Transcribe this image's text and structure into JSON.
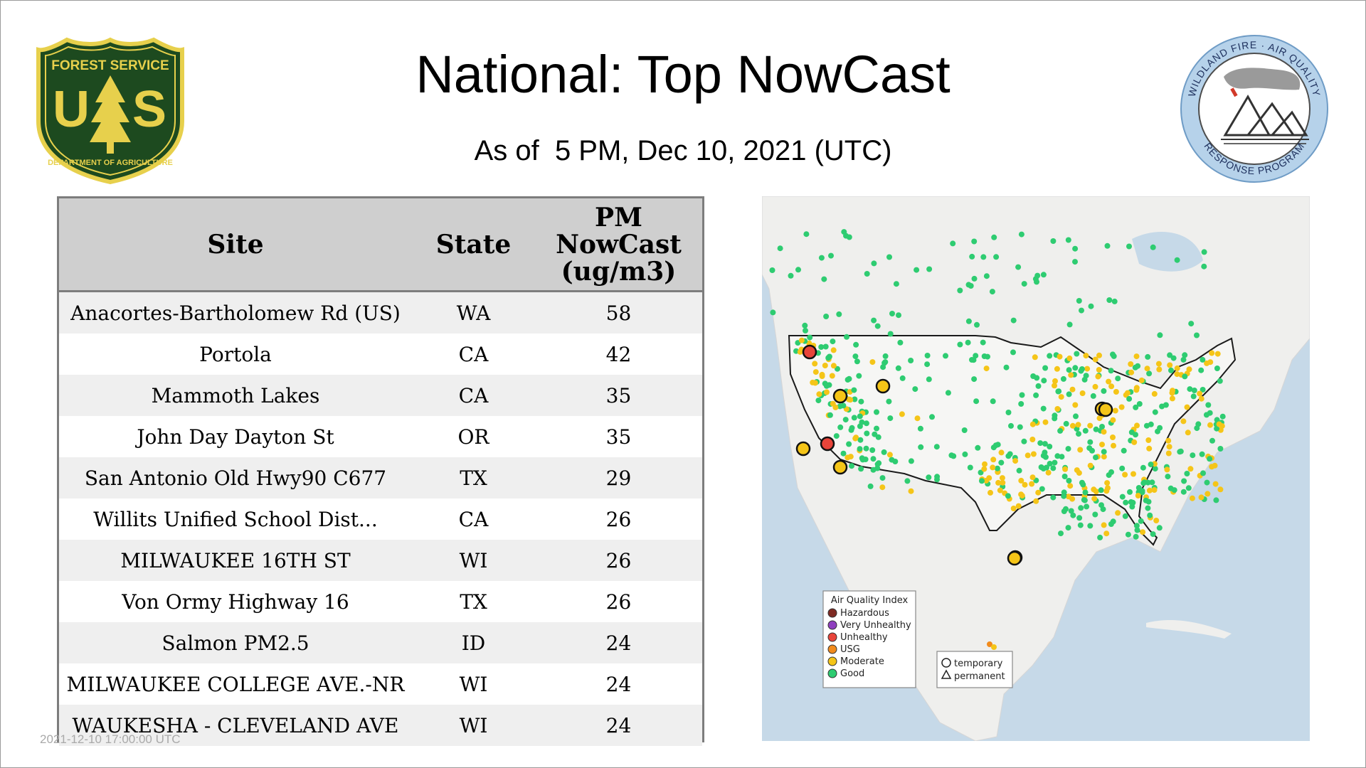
{
  "slide": {
    "title": "National: Top NowCast",
    "subtitle": "As of  5 PM, Dec 10, 2021 (UTC)",
    "footnote": "2021-12-10 17:00:00 UTC"
  },
  "logos": {
    "forest_service": {
      "top_text": "FOREST SERVICE",
      "letters": "US",
      "bottom_text": "DEPARTMENT OF AGRICULTURE"
    },
    "wildland": {
      "top_text": "WILDLAND FIRE · AIR QUALITY",
      "bottom_text": "RESPONSE PROGRAM"
    }
  },
  "table": {
    "headers": {
      "site": "Site",
      "state": "State",
      "pm_line1": "PM",
      "pm_line2": "NowCast",
      "pm_line3": "(ug/m3)"
    },
    "rows": [
      {
        "site": "Anacortes-Bartholomew Rd (US)",
        "state": "WA",
        "value": "58"
      },
      {
        "site": "Portola",
        "state": "CA",
        "value": "42"
      },
      {
        "site": "Mammoth Lakes",
        "state": "CA",
        "value": "35"
      },
      {
        "site": "John Day Dayton St",
        "state": "OR",
        "value": "35"
      },
      {
        "site": "San Antonio Old Hwy90 C677",
        "state": "TX",
        "value": "29"
      },
      {
        "site": "Willits Unified School Dist...",
        "state": "CA",
        "value": "26"
      },
      {
        "site": "MILWAUKEE 16TH ST",
        "state": "WI",
        "value": "26"
      },
      {
        "site": "Von Ormy Highway 16",
        "state": "TX",
        "value": "26"
      },
      {
        "site": "Salmon PM2.5",
        "state": "ID",
        "value": "24"
      },
      {
        "site": "MILWAUKEE COLLEGE AVE.-NR",
        "state": "WI",
        "value": "24"
      },
      {
        "site": "WAUKESHA - CLEVELAND AVE",
        "state": "WI",
        "value": "24"
      }
    ]
  },
  "map": {
    "legend": {
      "title": "Air Quality Index",
      "items": [
        {
          "label": "Hazardous",
          "color": "#7e2a22"
        },
        {
          "label": "Very Unhealthy",
          "color": "#8f3fbf"
        },
        {
          "label": "Unhealthy",
          "color": "#e8443a"
        },
        {
          "label": "USG",
          "color": "#f28b1c"
        },
        {
          "label": "Moderate",
          "color": "#f5c518"
        },
        {
          "label": "Good",
          "color": "#2ecc71"
        }
      ]
    },
    "shape_legend": {
      "temporary": "temporary",
      "permanent": "permanent"
    },
    "colors": {
      "water": "#c6d9e8",
      "land": "#efefed",
      "usa": "#f6f6f4",
      "border": "#1a1a1a"
    }
  }
}
